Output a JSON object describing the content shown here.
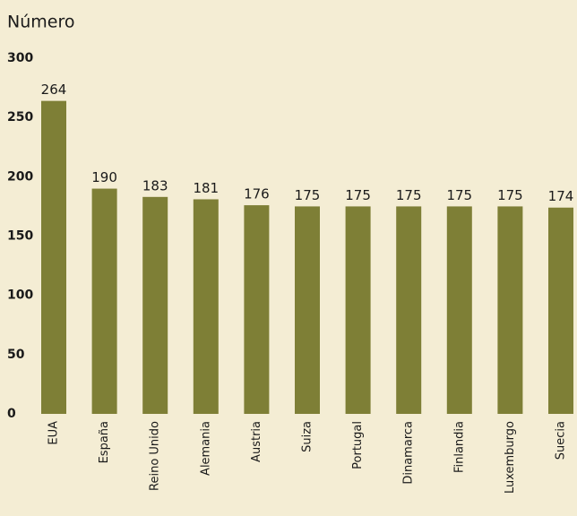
{
  "chart_data": {
    "type": "bar",
    "y_label": "Número",
    "categories": [
      "EUA",
      "España",
      "Reino Unido",
      "Alemania",
      "Austria",
      "Suiza",
      "Portugal",
      "Dinamarca",
      "Finlandia",
      "Luxemburgo",
      "Suecia"
    ],
    "values": [
      264,
      190,
      183,
      181,
      176,
      175,
      175,
      175,
      175,
      175,
      174
    ],
    "color": "#7e7f36",
    "ylim": [
      0,
      300
    ],
    "yticks": [
      0,
      50,
      100,
      150,
      200,
      250,
      300
    ],
    "grid": false
  }
}
